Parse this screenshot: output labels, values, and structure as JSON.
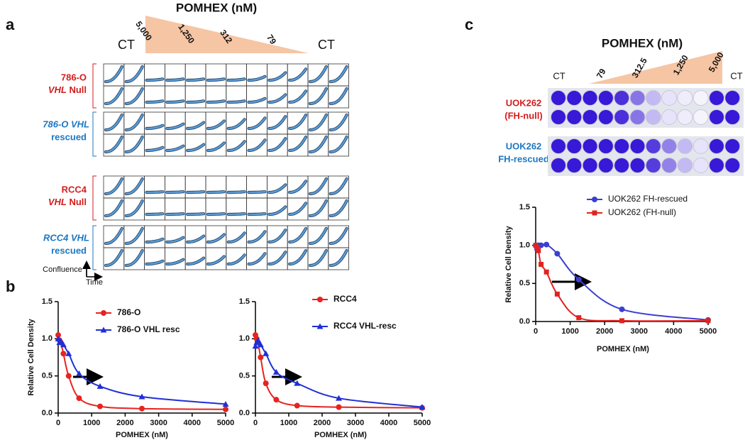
{
  "panel_labels": [
    "a",
    "b",
    "c"
  ],
  "panel_a": {
    "title": "POMHEX (nM)",
    "ct_left": "CT",
    "ct_right": "CT",
    "doses": [
      "5,000",
      "1,250",
      "312",
      "79"
    ],
    "row_labels": [
      [
        "786-O",
        "VHL",
        "Null"
      ],
      [
        "786-O VHL",
        "rescued"
      ],
      [
        "RCC4",
        "VHL",
        "Null"
      ],
      [
        "RCC4 VHL",
        "rescued"
      ]
    ],
    "y_axis": "Confluence",
    "x_axis": "Time"
  },
  "panel_c_plate": {
    "title": "POMHEX (nM)",
    "ct_left": "CT",
    "ct_right": "CT",
    "doses": [
      "79",
      "312.5",
      "1,250",
      "5,000"
    ],
    "row_labels": [
      [
        "UOK262",
        "(FH-null)"
      ],
      [
        "UOK262",
        "FH-rescued"
      ]
    ]
  },
  "chart_data": [
    {
      "type": "line",
      "x_label": "POMHEX (nM)",
      "y_label": "Relative Cell Density",
      "x": [
        0,
        39,
        78,
        156,
        312,
        625,
        1250,
        2500,
        5000
      ],
      "series": [
        {
          "name": "786-O",
          "color": "#e8231f",
          "marker": "circle",
          "values": [
            1.05,
            0.98,
            0.95,
            0.8,
            0.5,
            0.2,
            0.09,
            0.06,
            0.05
          ]
        },
        {
          "name": "786-O VHL resc",
          "color": "#1f2fd6",
          "marker": "triangle",
          "values": [
            1.0,
            0.95,
            0.97,
            0.92,
            0.8,
            0.53,
            0.36,
            0.22,
            0.12
          ]
        }
      ],
      "xlim": [
        0,
        5000
      ],
      "xticks": [
        0,
        1000,
        2000,
        3000,
        4000,
        5000
      ],
      "ylim": [
        0,
        1.5
      ],
      "yticks": [
        {
          "value": 0,
          "label": "0.0"
        },
        0.5,
        {
          "value": 1,
          "label": "1.0"
        },
        1.5
      ]
    },
    {
      "type": "line",
      "x_label": "POMHEX (nM)",
      "x": [
        0,
        39,
        78,
        156,
        312,
        625,
        1250,
        2500,
        5000
      ],
      "series": [
        {
          "name": "RCC4",
          "color": "#e8231f",
          "marker": "circle",
          "values": [
            1.05,
            1.0,
            0.95,
            0.75,
            0.4,
            0.18,
            0.1,
            0.08,
            0.07
          ]
        },
        {
          "name": "RCC4 VHL-resc",
          "color": "#1f2fd6",
          "marker": "triangle",
          "values": [
            0.9,
            0.95,
            0.98,
            0.92,
            0.8,
            0.55,
            0.4,
            0.2,
            0.08
          ]
        }
      ],
      "xlim": [
        0,
        5000
      ],
      "xticks": [
        0,
        1000,
        2000,
        3000,
        4000,
        5000
      ],
      "ylim": [
        0,
        1.5
      ],
      "yticks": [
        {
          "value": 0,
          "label": "0.0"
        },
        0.5,
        {
          "value": 1,
          "label": "1.0"
        },
        1.5
      ]
    },
    {
      "type": "line",
      "x_label": "POMHEX (nM)",
      "y_label": "Relative Cell Density",
      "x": [
        0,
        39,
        78,
        156,
        312,
        625,
        1250,
        2500,
        5000
      ],
      "series": [
        {
          "name": "UOK262 FH-rescued",
          "color": "#3b3fd0",
          "marker": "circle",
          "values": [
            1.0,
            0.95,
            1.0,
            1.0,
            1.01,
            0.89,
            0.55,
            0.16,
            0.02
          ]
        },
        {
          "name": "UOK262 (FH-null)",
          "color": "#e0231f",
          "marker": "square",
          "values": [
            1.0,
            0.97,
            0.93,
            0.75,
            0.65,
            0.36,
            0.05,
            0.01,
            0.01
          ]
        }
      ],
      "xlim": [
        0,
        5000
      ],
      "xticks": [
        0,
        1000,
        2000,
        3000,
        4000,
        5000
      ],
      "ylim": [
        0,
        1.5
      ],
      "yticks": [
        {
          "value": 0,
          "label": "0.0"
        },
        0.5,
        {
          "value": 1,
          "label": "1.0"
        },
        1.5
      ]
    }
  ]
}
